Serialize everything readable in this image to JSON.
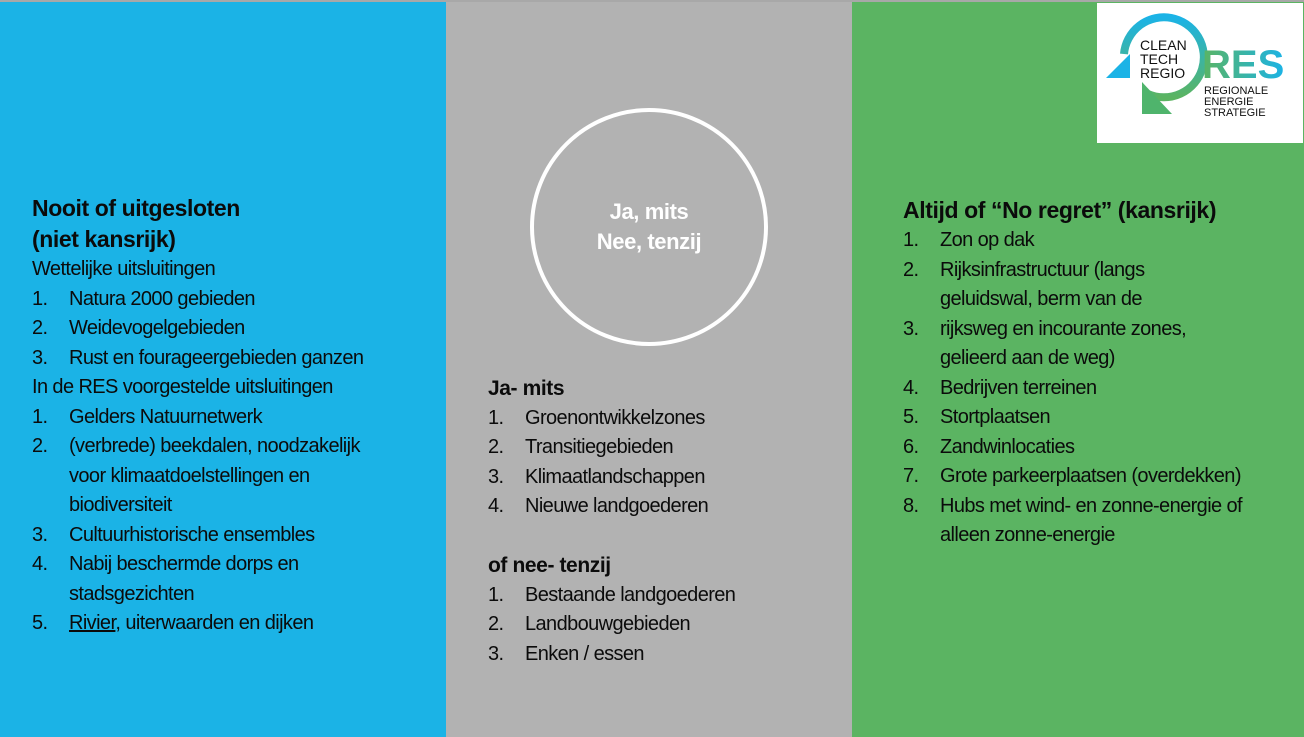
{
  "colors": {
    "left_bg": "#1BB3E6",
    "middle_bg": "#B2B2B2",
    "right_bg": "#5BB462"
  },
  "logo": {
    "icon": "cleantech-regio-circular-arrow-logo",
    "line1": "CLEAN",
    "line2": "TECH",
    "line3": "REGIO",
    "brand": "RES",
    "sub1": "REGIONALE",
    "sub2": "ENERGIE",
    "sub3": "STRATEGIE"
  },
  "left": {
    "title1": "Nooit of uitgesloten",
    "title2": "(niet kansrijk)",
    "section1": "Wettelijke uitsluitingen",
    "items1": [
      {
        "n": "1.",
        "t": "Natura 2000 gebieden"
      },
      {
        "n": "2.",
        "t": "Weidevogelgebieden"
      },
      {
        "n": "3.",
        "t": "Rust en fourageergebieden ganzen"
      }
    ],
    "section2": "In de RES voorgestelde uitsluitingen",
    "items2": [
      {
        "n": "1.",
        "t": "Gelders Natuurnetwerk"
      },
      {
        "n": "2.",
        "t": "(verbrede) beekdalen, noodzakelijk",
        "c1": "voor klimaatdoelstellingen en",
        "c2": "biodiversiteit"
      },
      {
        "n": "3.",
        "t": "Cultuurhistorische ensembles"
      },
      {
        "n": "4.",
        "t": "Nabij beschermde dorps en",
        "c1": "stadsgezichten"
      },
      {
        "n": "5.",
        "u": "Rivier",
        "t": ", uiterwaarden en dijken"
      }
    ]
  },
  "middle": {
    "circle_line1": "Ja, mits",
    "circle_line2": "Nee, tenzij",
    "heading1": "Ja- mits",
    "items1": [
      {
        "n": "1.",
        "t": "Groenontwikkelzones"
      },
      {
        "n": "2.",
        "t": "Transitiegebieden"
      },
      {
        "n": "3.",
        "t": "Klimaatlandschappen"
      },
      {
        "n": "4.",
        "t": "Nieuwe landgoederen"
      }
    ],
    "heading2": "of nee- tenzij",
    "items2": [
      {
        "n": "1.",
        "t": "Bestaande landgoederen"
      },
      {
        "n": "2.",
        "t": "Landbouwgebieden"
      },
      {
        "n": "3.",
        "t": "Enken / essen"
      }
    ]
  },
  "right": {
    "title": "Altijd of “No regret” (kansrijk)",
    "items": [
      {
        "n": "1.",
        "t": "Zon op dak"
      },
      {
        "n": "2.",
        "t": "Rijksinfrastructuur (langs",
        "c1": "geluidswal, berm van de"
      },
      {
        "n": "3.",
        "t": "rijksweg en incourante zones,",
        "c1": "gelieerd aan de weg)"
      },
      {
        "n": "4.",
        "t": "Bedrijven terreinen"
      },
      {
        "n": "5.",
        "t": "Stortplaatsen"
      },
      {
        "n": "6.",
        "t": "Zandwinlocaties"
      },
      {
        "n": "7.",
        "t": "Grote parkeerplaatsen (overdekken)"
      },
      {
        "n": "8.",
        "t": "Hubs met wind- en zonne-energie of",
        "c1": "alleen zonne-energie"
      }
    ]
  }
}
